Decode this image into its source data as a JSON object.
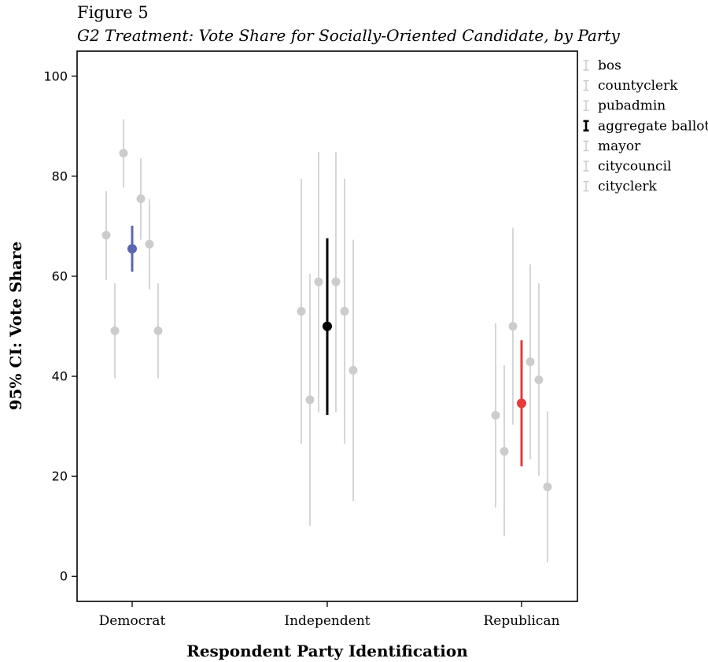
{
  "figure_label": "Figure 5",
  "chart_data": {
    "type": "scatter",
    "title": "G2 Treatment: Vote Share for Socially-Oriented Candidate, by Party",
    "xlabel": "Respondent Party Identification",
    "ylabel": "95% CI: Vote Share",
    "categories": [
      "Democrat",
      "Independent",
      "Republican"
    ],
    "ylim": [
      -5,
      105
    ],
    "yticks": [
      0,
      20,
      40,
      60,
      80,
      100
    ],
    "grid": false,
    "legend_position": "right",
    "series": [
      {
        "name": "bos",
        "color": "#cccccc",
        "highlight": false,
        "points": [
          {
            "y": 68.2,
            "lo": 59.2,
            "hi": 77.0
          },
          {
            "y": 53.0,
            "lo": 26.5,
            "hi": 79.5
          },
          {
            "y": 32.2,
            "lo": 13.8,
            "hi": 50.6
          }
        ]
      },
      {
        "name": "countyclerk",
        "color": "#cccccc",
        "highlight": false,
        "points": [
          {
            "y": 49.1,
            "lo": 39.6,
            "hi": 58.6
          },
          {
            "y": 35.3,
            "lo": 10.1,
            "hi": 60.5
          },
          {
            "y": 25.0,
            "lo": 8.0,
            "hi": 42.2
          }
        ]
      },
      {
        "name": "pubadmin",
        "color": "#cccccc",
        "highlight": false,
        "points": [
          {
            "y": 84.6,
            "lo": 77.7,
            "hi": 91.4
          },
          {
            "y": 58.9,
            "lo": 32.8,
            "hi": 84.9
          },
          {
            "y": 50.0,
            "lo": 30.3,
            "hi": 69.7
          }
        ]
      },
      {
        "name": "aggregate ballot",
        "color": "#000000",
        "highlight": true,
        "point_colors": [
          "#5b66b0",
          "#000000",
          "#e83a3a"
        ],
        "points": [
          {
            "y": 65.5,
            "lo": 60.9,
            "hi": 70.1
          },
          {
            "y": 50.0,
            "lo": 32.3,
            "hi": 67.6
          },
          {
            "y": 34.6,
            "lo": 22.0,
            "hi": 47.2
          }
        ]
      },
      {
        "name": "mayor",
        "color": "#cccccc",
        "highlight": false,
        "points": [
          {
            "y": 75.5,
            "lo": 67.3,
            "hi": 83.6
          },
          {
            "y": 58.9,
            "lo": 32.8,
            "hi": 84.9
          },
          {
            "y": 42.9,
            "lo": 23.4,
            "hi": 62.4
          }
        ]
      },
      {
        "name": "citycouncil",
        "color": "#cccccc",
        "highlight": false,
        "points": [
          {
            "y": 66.4,
            "lo": 57.4,
            "hi": 75.4
          },
          {
            "y": 53.0,
            "lo": 26.5,
            "hi": 79.5
          },
          {
            "y": 39.3,
            "lo": 20.1,
            "hi": 58.6
          }
        ]
      },
      {
        "name": "cityclerk",
        "color": "#cccccc",
        "highlight": false,
        "points": [
          {
            "y": 49.1,
            "lo": 39.6,
            "hi": 58.6
          },
          {
            "y": 41.2,
            "lo": 15.0,
            "hi": 67.3
          },
          {
            "y": 17.9,
            "lo": 2.8,
            "hi": 33.0
          }
        ]
      }
    ]
  }
}
